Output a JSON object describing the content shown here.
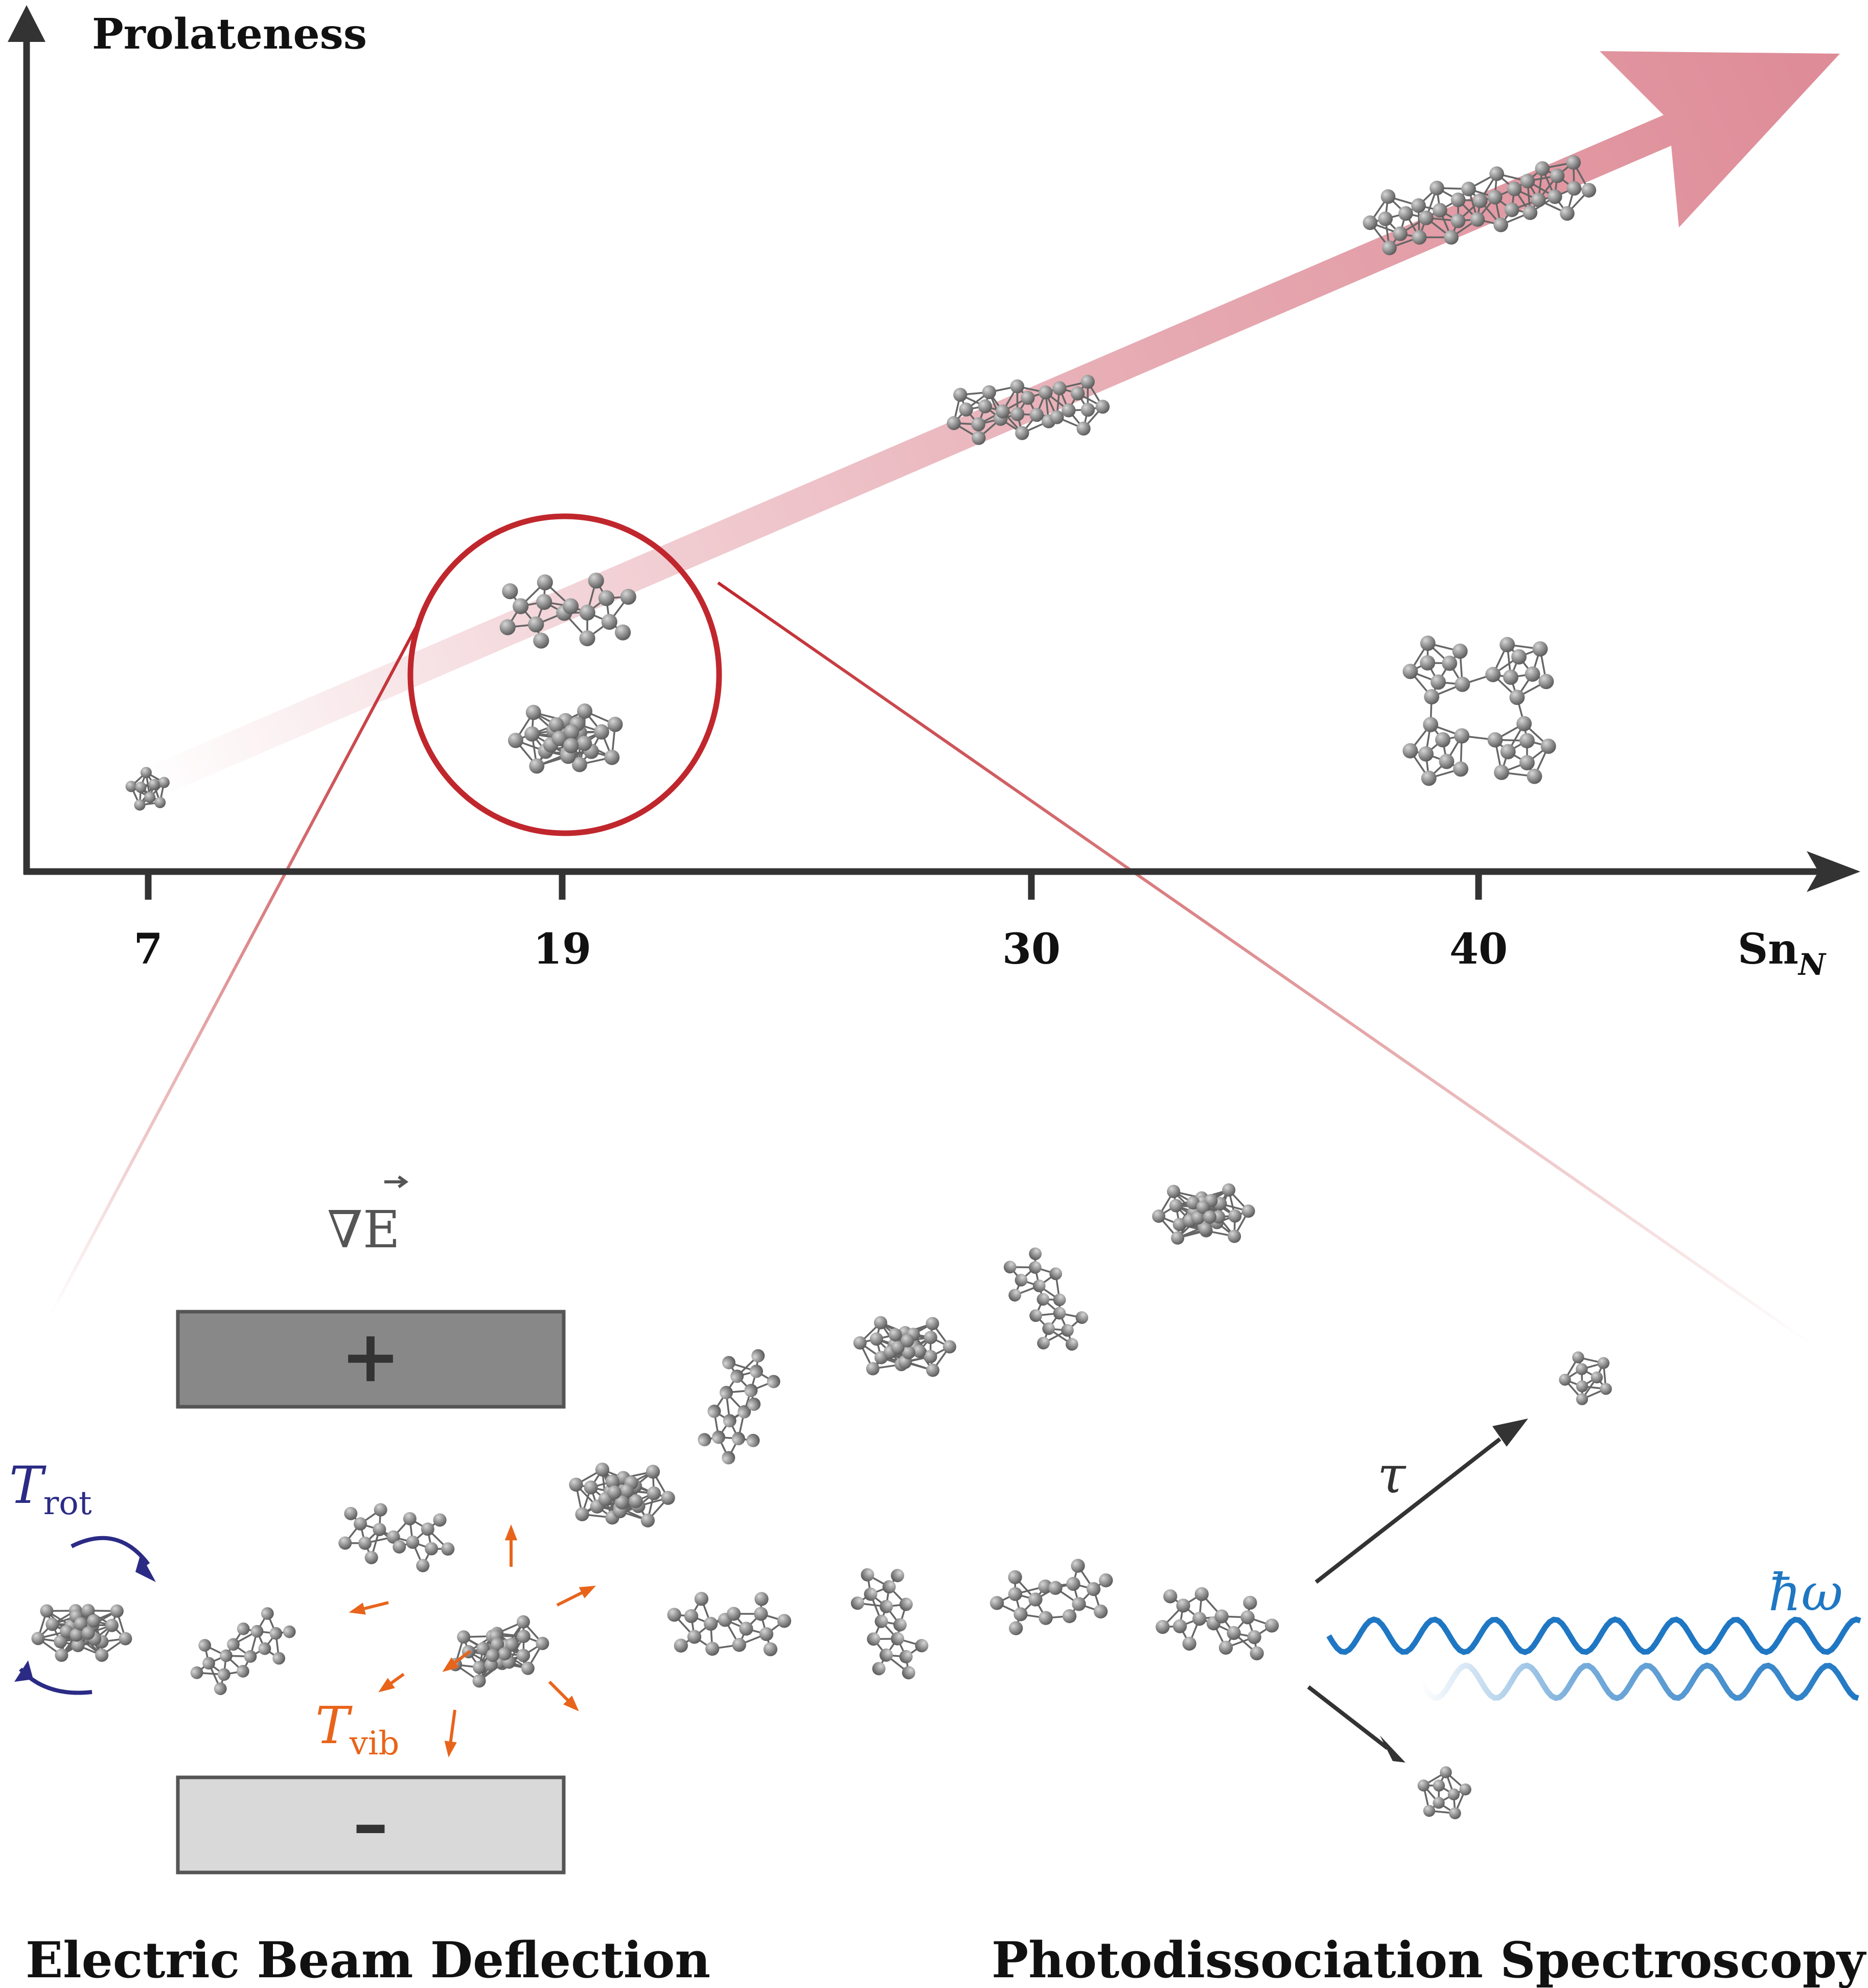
{
  "y_axis_label": "Prolateness",
  "x_axis_label": "Sn",
  "x_axis_subscript": "N",
  "x_ticks": [
    "7",
    "19",
    "30",
    "40"
  ],
  "field_gradient_label": "∇E",
  "plus_plate_label": "+",
  "minus_plate_label": "–",
  "rot_temp_symbol": "T",
  "rot_temp_subscript": "rot",
  "vib_temp_symbol": "T",
  "vib_temp_subscript": "vib",
  "lifetime_symbol": "τ",
  "photon_energy_label": "ħω",
  "left_caption": "Electric Beam Deflection",
  "right_caption": "Photodissociation Spectroscopy",
  "colors": {
    "axis": "#333333",
    "trend_arrow": "#dc8591",
    "highlight_circle": "#c0272d",
    "plus_plate": "#888888",
    "minus_plate": "#d9d9d9",
    "rotation": "#2b2b86",
    "vibration": "#e8641b",
    "photon": "#1f77c3",
    "atom": "#8a8a8a"
  }
}
